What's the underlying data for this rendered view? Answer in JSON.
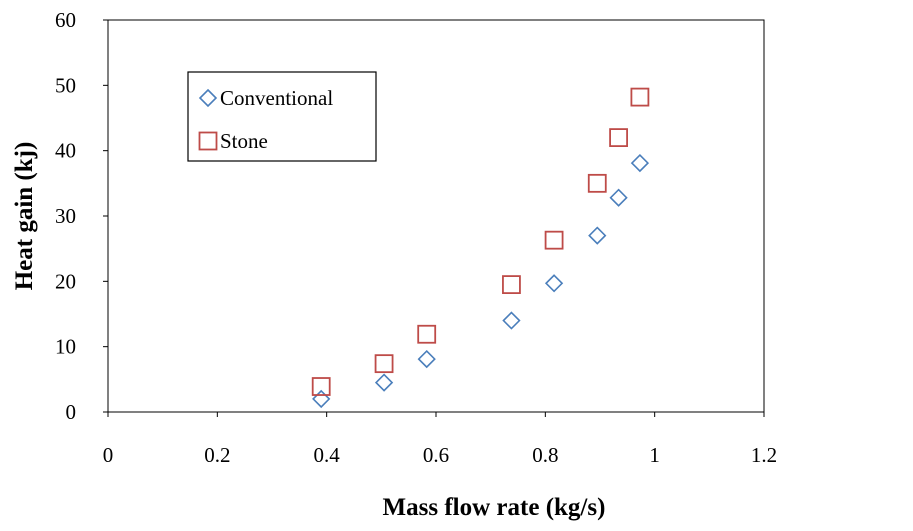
{
  "colors": {
    "conventional": "#4a7ebb",
    "stone": "#be4b48",
    "axis": "#000000"
  },
  "chart_data": {
    "type": "scatter",
    "title": "",
    "xlabel": "Mass flow rate (kg/s)",
    "ylabel": "Heat gain (kj)",
    "xlim": [
      0,
      1.2
    ],
    "ylim": [
      0,
      60
    ],
    "x_ticks": [
      0,
      0.2,
      0.4,
      0.6,
      0.8,
      1,
      1.2
    ],
    "y_ticks": [
      0,
      10,
      20,
      30,
      40,
      50,
      60
    ],
    "x_tick_labels": [
      "0",
      "0.2",
      "0.4",
      "0.6",
      "0.8",
      "1",
      "1.2"
    ],
    "y_tick_labels": [
      "0",
      "10",
      "20",
      "30",
      "40",
      "50",
      "60"
    ],
    "grid": false,
    "legend_position": "top-left",
    "series": [
      {
        "name": "Conventional",
        "marker": "diamond-open",
        "points": [
          {
            "x": 0.39,
            "y": 2
          },
          {
            "x": 0.505,
            "y": 4.5
          },
          {
            "x": 0.583,
            "y": 8.1
          },
          {
            "x": 0.738,
            "y": 14
          },
          {
            "x": 0.816,
            "y": 19.7
          },
          {
            "x": 0.895,
            "y": 27
          },
          {
            "x": 0.934,
            "y": 32.8
          },
          {
            "x": 0.973,
            "y": 38.1
          }
        ]
      },
      {
        "name": "Stone",
        "marker": "square-open",
        "points": [
          {
            "x": 0.39,
            "y": 3.9
          },
          {
            "x": 0.505,
            "y": 7.4
          },
          {
            "x": 0.583,
            "y": 11.9
          },
          {
            "x": 0.738,
            "y": 19.5
          },
          {
            "x": 0.816,
            "y": 26.3
          },
          {
            "x": 0.895,
            "y": 35
          },
          {
            "x": 0.934,
            "y": 42
          },
          {
            "x": 0.973,
            "y": 48.2
          }
        ]
      }
    ]
  }
}
